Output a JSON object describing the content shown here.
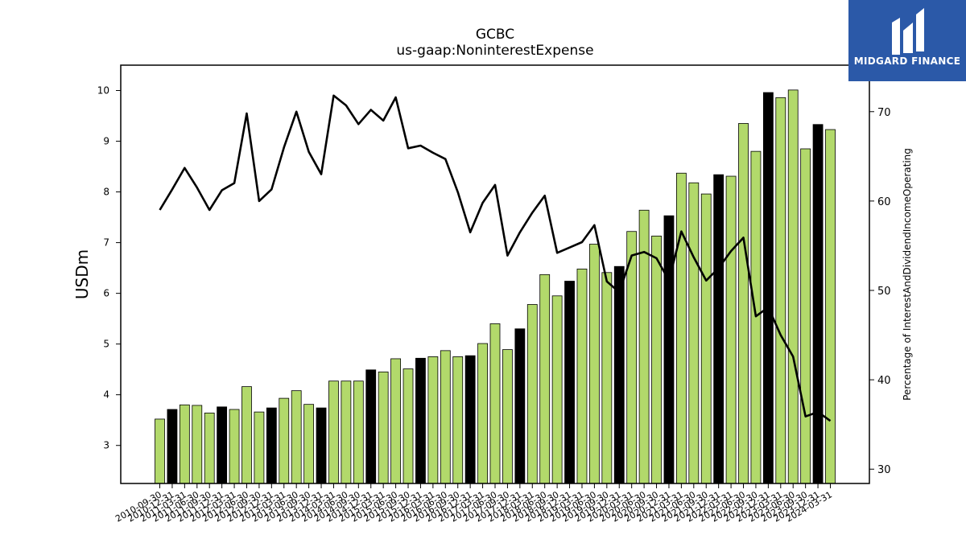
{
  "chart_data": {
    "type": "bar+line",
    "title": "GCBC",
    "subtitle": "us-gaap:NoninterestExpense",
    "ylabel": "USDm",
    "y2label": "Percentage of InterestAndDividendIncomeOperating",
    "ylim": [
      2.25,
      10.5
    ],
    "y2lim": [
      28.4,
      75.2
    ],
    "yticks": [
      3,
      4,
      5,
      6,
      7,
      8,
      9,
      10
    ],
    "y2ticks": [
      30,
      40,
      50,
      60,
      70
    ],
    "colors": {
      "bar_green": "#b2d96b",
      "bar_black": "#000000",
      "line": "#000000"
    },
    "categories": [
      "2010-09-30",
      "2010-12-31",
      "2011-03-31",
      "2011-06-30",
      "2011-09-30",
      "2011-12-31",
      "2012-03-31",
      "2012-06-30",
      "2012-09-30",
      "2012-12-31",
      "2013-03-31",
      "2013-06-30",
      "2013-09-30",
      "2013-12-31",
      "2014-03-31",
      "2014-06-30",
      "2014-09-30",
      "2014-12-31",
      "2015-03-31",
      "2015-06-30",
      "2015-09-30",
      "2015-12-31",
      "2016-03-31",
      "2016-06-30",
      "2016-09-30",
      "2016-12-31",
      "2017-03-31",
      "2017-06-30",
      "2017-09-30",
      "2017-12-31",
      "2018-03-31",
      "2018-06-30",
      "2018-09-30",
      "2018-12-31",
      "2019-03-31",
      "2019-06-30",
      "2019-09-30",
      "2019-12-31",
      "2020-03-31",
      "2020-06-30",
      "2020-09-30",
      "2020-12-31",
      "2021-03-31",
      "2021-06-30",
      "2021-09-30",
      "2021-12-31",
      "2022-03-31",
      "2022-06-30",
      "2022-09-30",
      "2022-12-31",
      "2023-03-31",
      "2023-06-30",
      "2023-09-30",
      "2023-12-31",
      "2024-03-31"
    ],
    "series": [
      {
        "kind": "bar",
        "values": [
          3.52,
          3.71,
          3.8,
          3.79,
          3.64,
          3.76,
          3.71,
          4.16,
          3.66,
          3.74,
          3.93,
          4.08,
          3.81,
          3.74,
          4.27,
          4.27,
          4.27,
          4.49,
          4.45,
          4.71,
          4.51,
          4.72,
          4.75,
          4.87,
          4.75,
          4.77,
          5.01,
          5.4,
          4.89,
          5.3,
          5.78,
          6.37,
          5.95,
          6.24,
          6.48,
          6.97,
          6.41,
          6.53,
          7.22,
          7.64,
          7.13,
          7.53,
          8.37,
          8.18,
          7.96,
          8.34,
          8.31,
          9.35,
          8.8,
          9.96,
          9.86,
          10.01,
          8.85,
          9.33,
          9.23
        ],
        "colors": [
          "g",
          "k",
          "g",
          "g",
          "g",
          "k",
          "g",
          "g",
          "g",
          "k",
          "g",
          "g",
          "g",
          "k",
          "g",
          "g",
          "g",
          "k",
          "g",
          "g",
          "g",
          "k",
          "g",
          "g",
          "g",
          "k",
          "g",
          "g",
          "g",
          "k",
          "g",
          "g",
          "g",
          "k",
          "g",
          "g",
          "g",
          "k",
          "g",
          "g",
          "g",
          "k",
          "g",
          "g",
          "g",
          "k",
          "g",
          "g",
          "g",
          "k",
          "g",
          "g",
          "g",
          "k",
          "g"
        ]
      },
      {
        "kind": "line",
        "axis": "right",
        "values": [
          59.0,
          61.3,
          63.7,
          61.5,
          59.0,
          61.2,
          62.0,
          69.8,
          60.0,
          61.3,
          66.0,
          70.0,
          65.5,
          63.0,
          71.8,
          70.7,
          68.6,
          70.2,
          69.0,
          71.6,
          65.9,
          66.2,
          65.4,
          64.7,
          61.0,
          56.5,
          59.8,
          61.8,
          53.9,
          56.5,
          58.7,
          60.6,
          54.2,
          54.8,
          55.4,
          57.3,
          51.0,
          49.8,
          53.9,
          54.3,
          53.6,
          51.1,
          56.6,
          53.7,
          51.1,
          52.5,
          54.4,
          55.9,
          47.1,
          48.1,
          45.0,
          42.6,
          35.9,
          36.4,
          35.4
        ]
      }
    ]
  },
  "logo": {
    "text": "MIDGARD FINANCE"
  }
}
